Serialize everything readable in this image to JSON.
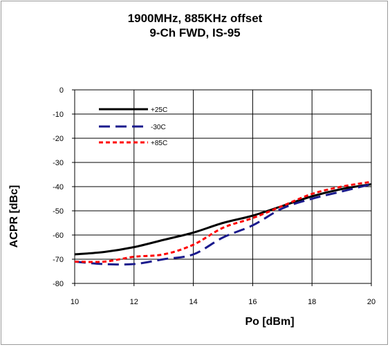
{
  "chart_data": {
    "type": "line",
    "title": "1900MHz, 885KHz offset",
    "subtitle": "9-Ch FWD, IS-95",
    "xlabel": "Po [dBm]",
    "ylabel": "ACPR [dBc]",
    "xlim": [
      10,
      20
    ],
    "ylim": [
      -80,
      0
    ],
    "xticks": [
      10,
      12,
      14,
      16,
      18,
      20
    ],
    "yticks": [
      0,
      -10,
      -20,
      -30,
      -40,
      -50,
      -60,
      -70,
      -80
    ],
    "grid": true,
    "legend_position": "top-left",
    "x": [
      10,
      11,
      12,
      13,
      14,
      15,
      16,
      17,
      18,
      19,
      20
    ],
    "series": [
      {
        "name": "+25C",
        "color": "#000000",
        "dash": "solid",
        "values": [
          -68,
          -67,
          -65,
          -62,
          -59,
          -55,
          -52,
          -48,
          -44,
          -41,
          -39
        ]
      },
      {
        "name": "-30C",
        "color": "#1a1a8c",
        "dash": "long-dash",
        "values": [
          -71,
          -72,
          -72,
          -70,
          -68,
          -61,
          -56,
          -49,
          -45,
          -42,
          -39
        ]
      },
      {
        "name": "+85C",
        "color": "#ff0000",
        "dash": "short-dash",
        "values": [
          -71,
          -71,
          -69,
          -68,
          -64,
          -57,
          -53,
          -48,
          -43,
          -40,
          -38
        ]
      }
    ]
  }
}
